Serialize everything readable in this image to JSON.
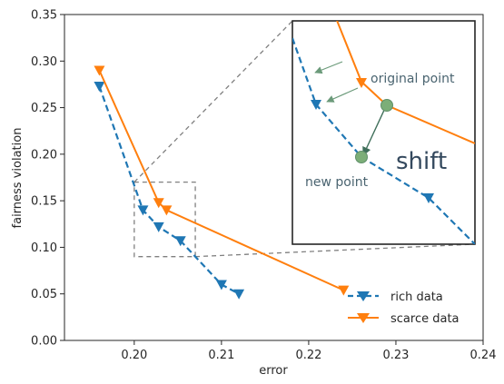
{
  "chart_data": {
    "type": "line",
    "title": "",
    "xlabel": "error",
    "ylabel": "fairness violation",
    "xlim": [
      0.192,
      0.24
    ],
    "ylim": [
      0.0,
      0.35
    ],
    "xticks": [
      0.2,
      0.21,
      0.22,
      0.23,
      0.24
    ],
    "xtick_labels": [
      "0.20",
      "0.21",
      "0.22",
      "0.23",
      "0.24"
    ],
    "yticks": [
      0.0,
      0.05,
      0.1,
      0.15,
      0.2,
      0.25,
      0.3,
      0.35
    ],
    "ytick_labels": [
      "0.00",
      "0.05",
      "0.10",
      "0.15",
      "0.20",
      "0.25",
      "0.30",
      "0.35"
    ],
    "grid": false,
    "legend_position": "bottom-right",
    "series": [
      {
        "name": "rich data",
        "color": "#1f77b4",
        "linestyle": "dashed",
        "marker": "triangle-down",
        "x": [
          0.196,
          0.201,
          0.2028,
          0.2053,
          0.21,
          0.212
        ],
        "y": [
          0.273,
          0.14,
          0.122,
          0.107,
          0.06,
          0.05
        ]
      },
      {
        "name": "scarce data",
        "color": "#ff7f0e",
        "linestyle": "solid",
        "marker": "triangle-down",
        "x": [
          0.196,
          0.2028,
          0.2037,
          0.224
        ],
        "y": [
          0.29,
          0.148,
          0.14,
          0.054
        ]
      }
    ],
    "zoom_region": {
      "xlim": [
        0.2,
        0.207
      ],
      "ylim": [
        0.09,
        0.17
      ]
    },
    "inset": {
      "annotations": {
        "original_point": "original point",
        "new_point": "new point",
        "shift": "shift"
      },
      "original_point_color": "#7cae78",
      "arrow_color": "#4a7a5a"
    }
  }
}
